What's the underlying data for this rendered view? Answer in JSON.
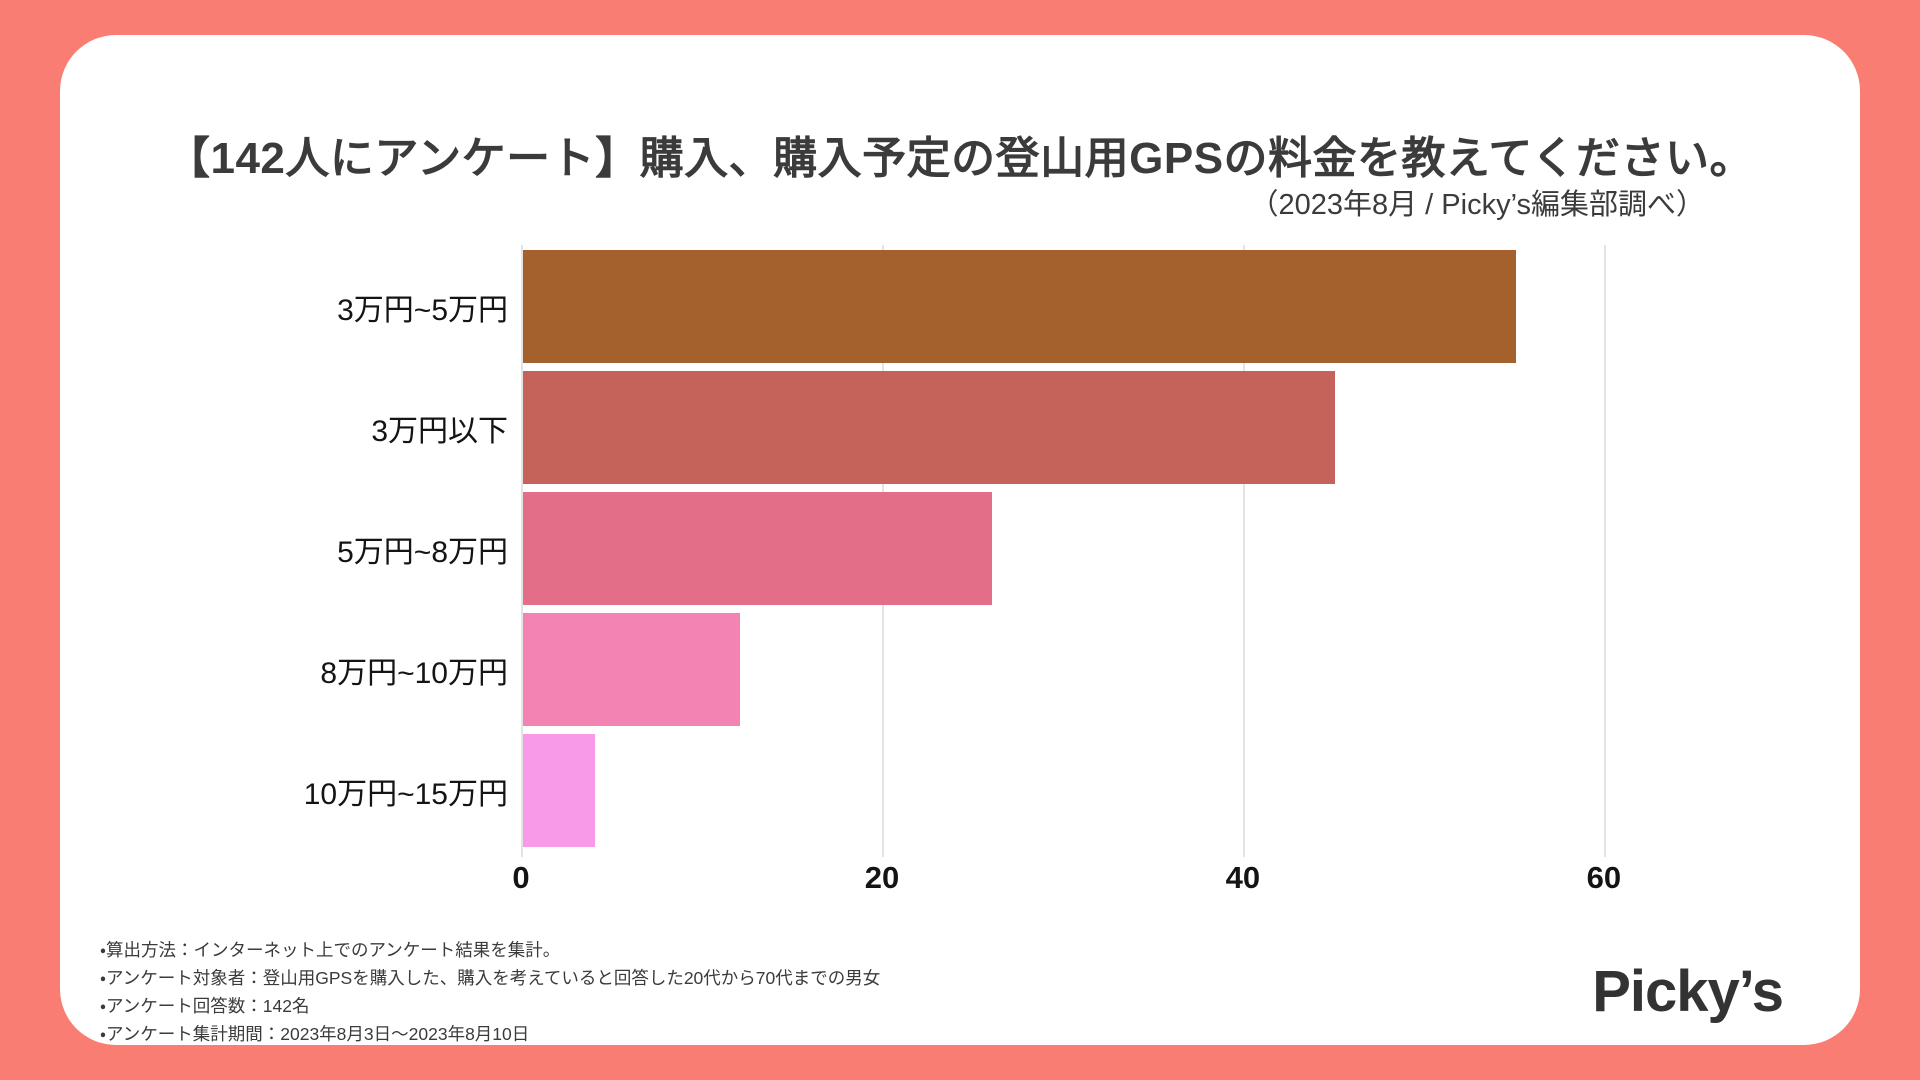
{
  "header": {
    "title": "【142人にアンケート】購入、購入予定の登山用GPSの料金を教えてください。",
    "subtitle": "（2023年8月 / Picky’s編集部調べ）"
  },
  "chart_data": {
    "type": "bar",
    "orientation": "horizontal",
    "title": "【142人にアンケート】購入、購入予定の登山用GPSの料金を教えてください。",
    "categories": [
      "3万円~5万円",
      "3万円以下",
      "5万円~8万円",
      "8万円~10万円",
      "10万円~15万円"
    ],
    "values": [
      55,
      45,
      26,
      12,
      4
    ],
    "bar_colors": [
      "#a4612d",
      "#c5635a",
      "#e26e88",
      "#f283b3",
      "#f89ae8"
    ],
    "x_ticks": [
      0,
      20,
      40,
      60
    ],
    "xlim": [
      0,
      62.5
    ],
    "xlabel": "",
    "ylabel": "",
    "grid": true,
    "legend": "none"
  },
  "footnotes": {
    "lines": [
      "・算出方法：インターネット上でのアンケート結果を集計。",
      "・アンケート対象者：登山用GPSを購入した、購入を考えていると回答した20代から70代までの男女",
      "・アンケート回答数：142名",
      "・アンケート集計期間：2023年8月3日～2023年8月10日"
    ]
  },
  "logo": {
    "text": "Picky’s"
  },
  "colors": {
    "background": "#f97d73",
    "card": "#ffffff",
    "title_text": "#3b3b3b",
    "label_text": "#141414",
    "gridline": "#e4e4e4"
  }
}
